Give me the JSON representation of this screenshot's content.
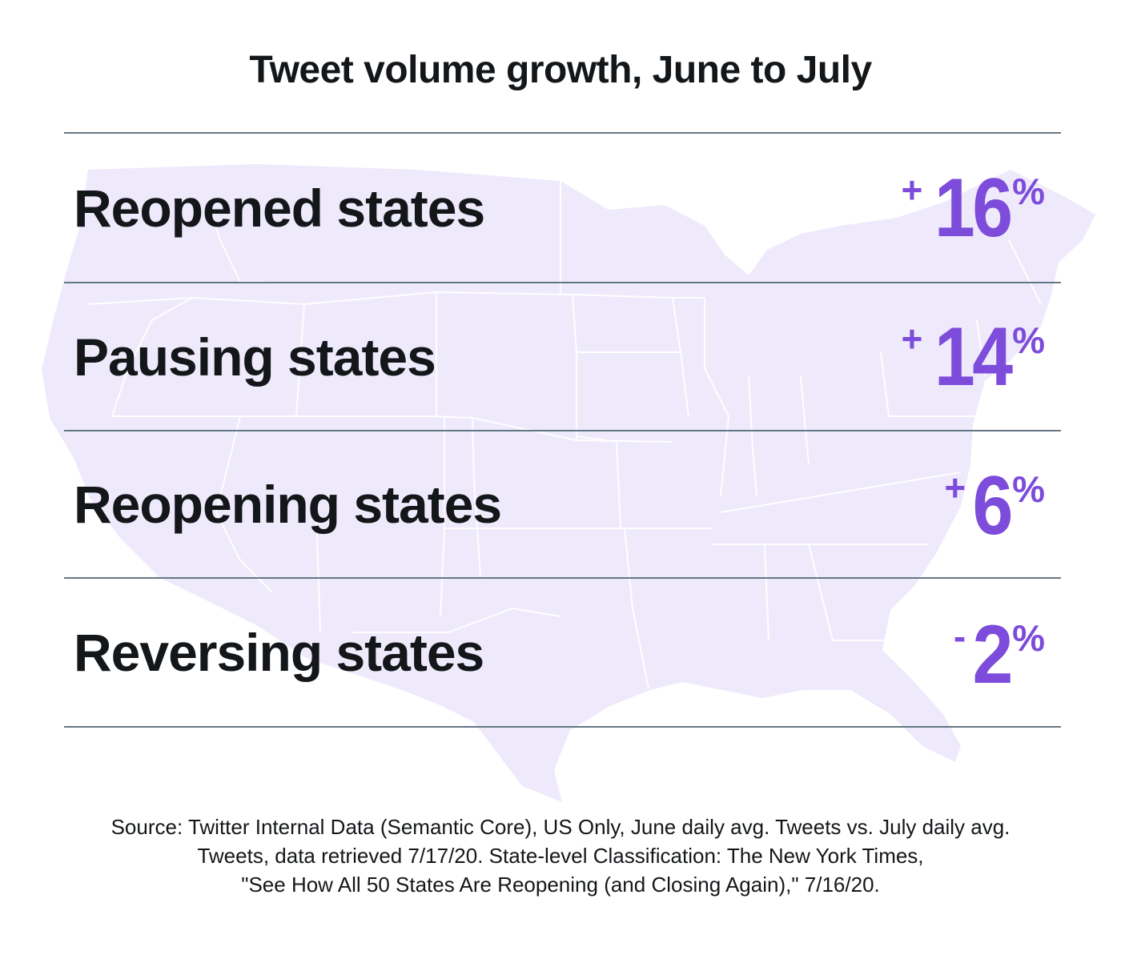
{
  "colors": {
    "accent": "#7d4cdb",
    "text": "#14171a",
    "divider": "#657786",
    "map_fill": "#eeeafc",
    "map_borders": "#ffffff"
  },
  "background_icon": "us-map-icon",
  "chart_data": {
    "type": "table",
    "title": "Tweet volume growth, June to July",
    "unit": "%",
    "rows": [
      {
        "label": "Reopened states",
        "sign": "+",
        "value": 16,
        "unit": "%"
      },
      {
        "label": "Pausing states",
        "sign": "+",
        "value": 14,
        "unit": "%"
      },
      {
        "label": "Reopening states",
        "sign": "+",
        "value": 6,
        "unit": "%"
      },
      {
        "label": "Reversing states",
        "sign": "-",
        "value": 2,
        "unit": "%"
      }
    ],
    "source": [
      "Source: Twitter Internal Data (Semantic Core), US Only, June daily avg. Tweets vs. July daily avg.",
      "Tweets, data retrieved 7/17/20. State-level Classification: The New York Times,",
      "\"See How All 50 States Are Reopening (and Closing Again),\" 7/16/20."
    ]
  }
}
